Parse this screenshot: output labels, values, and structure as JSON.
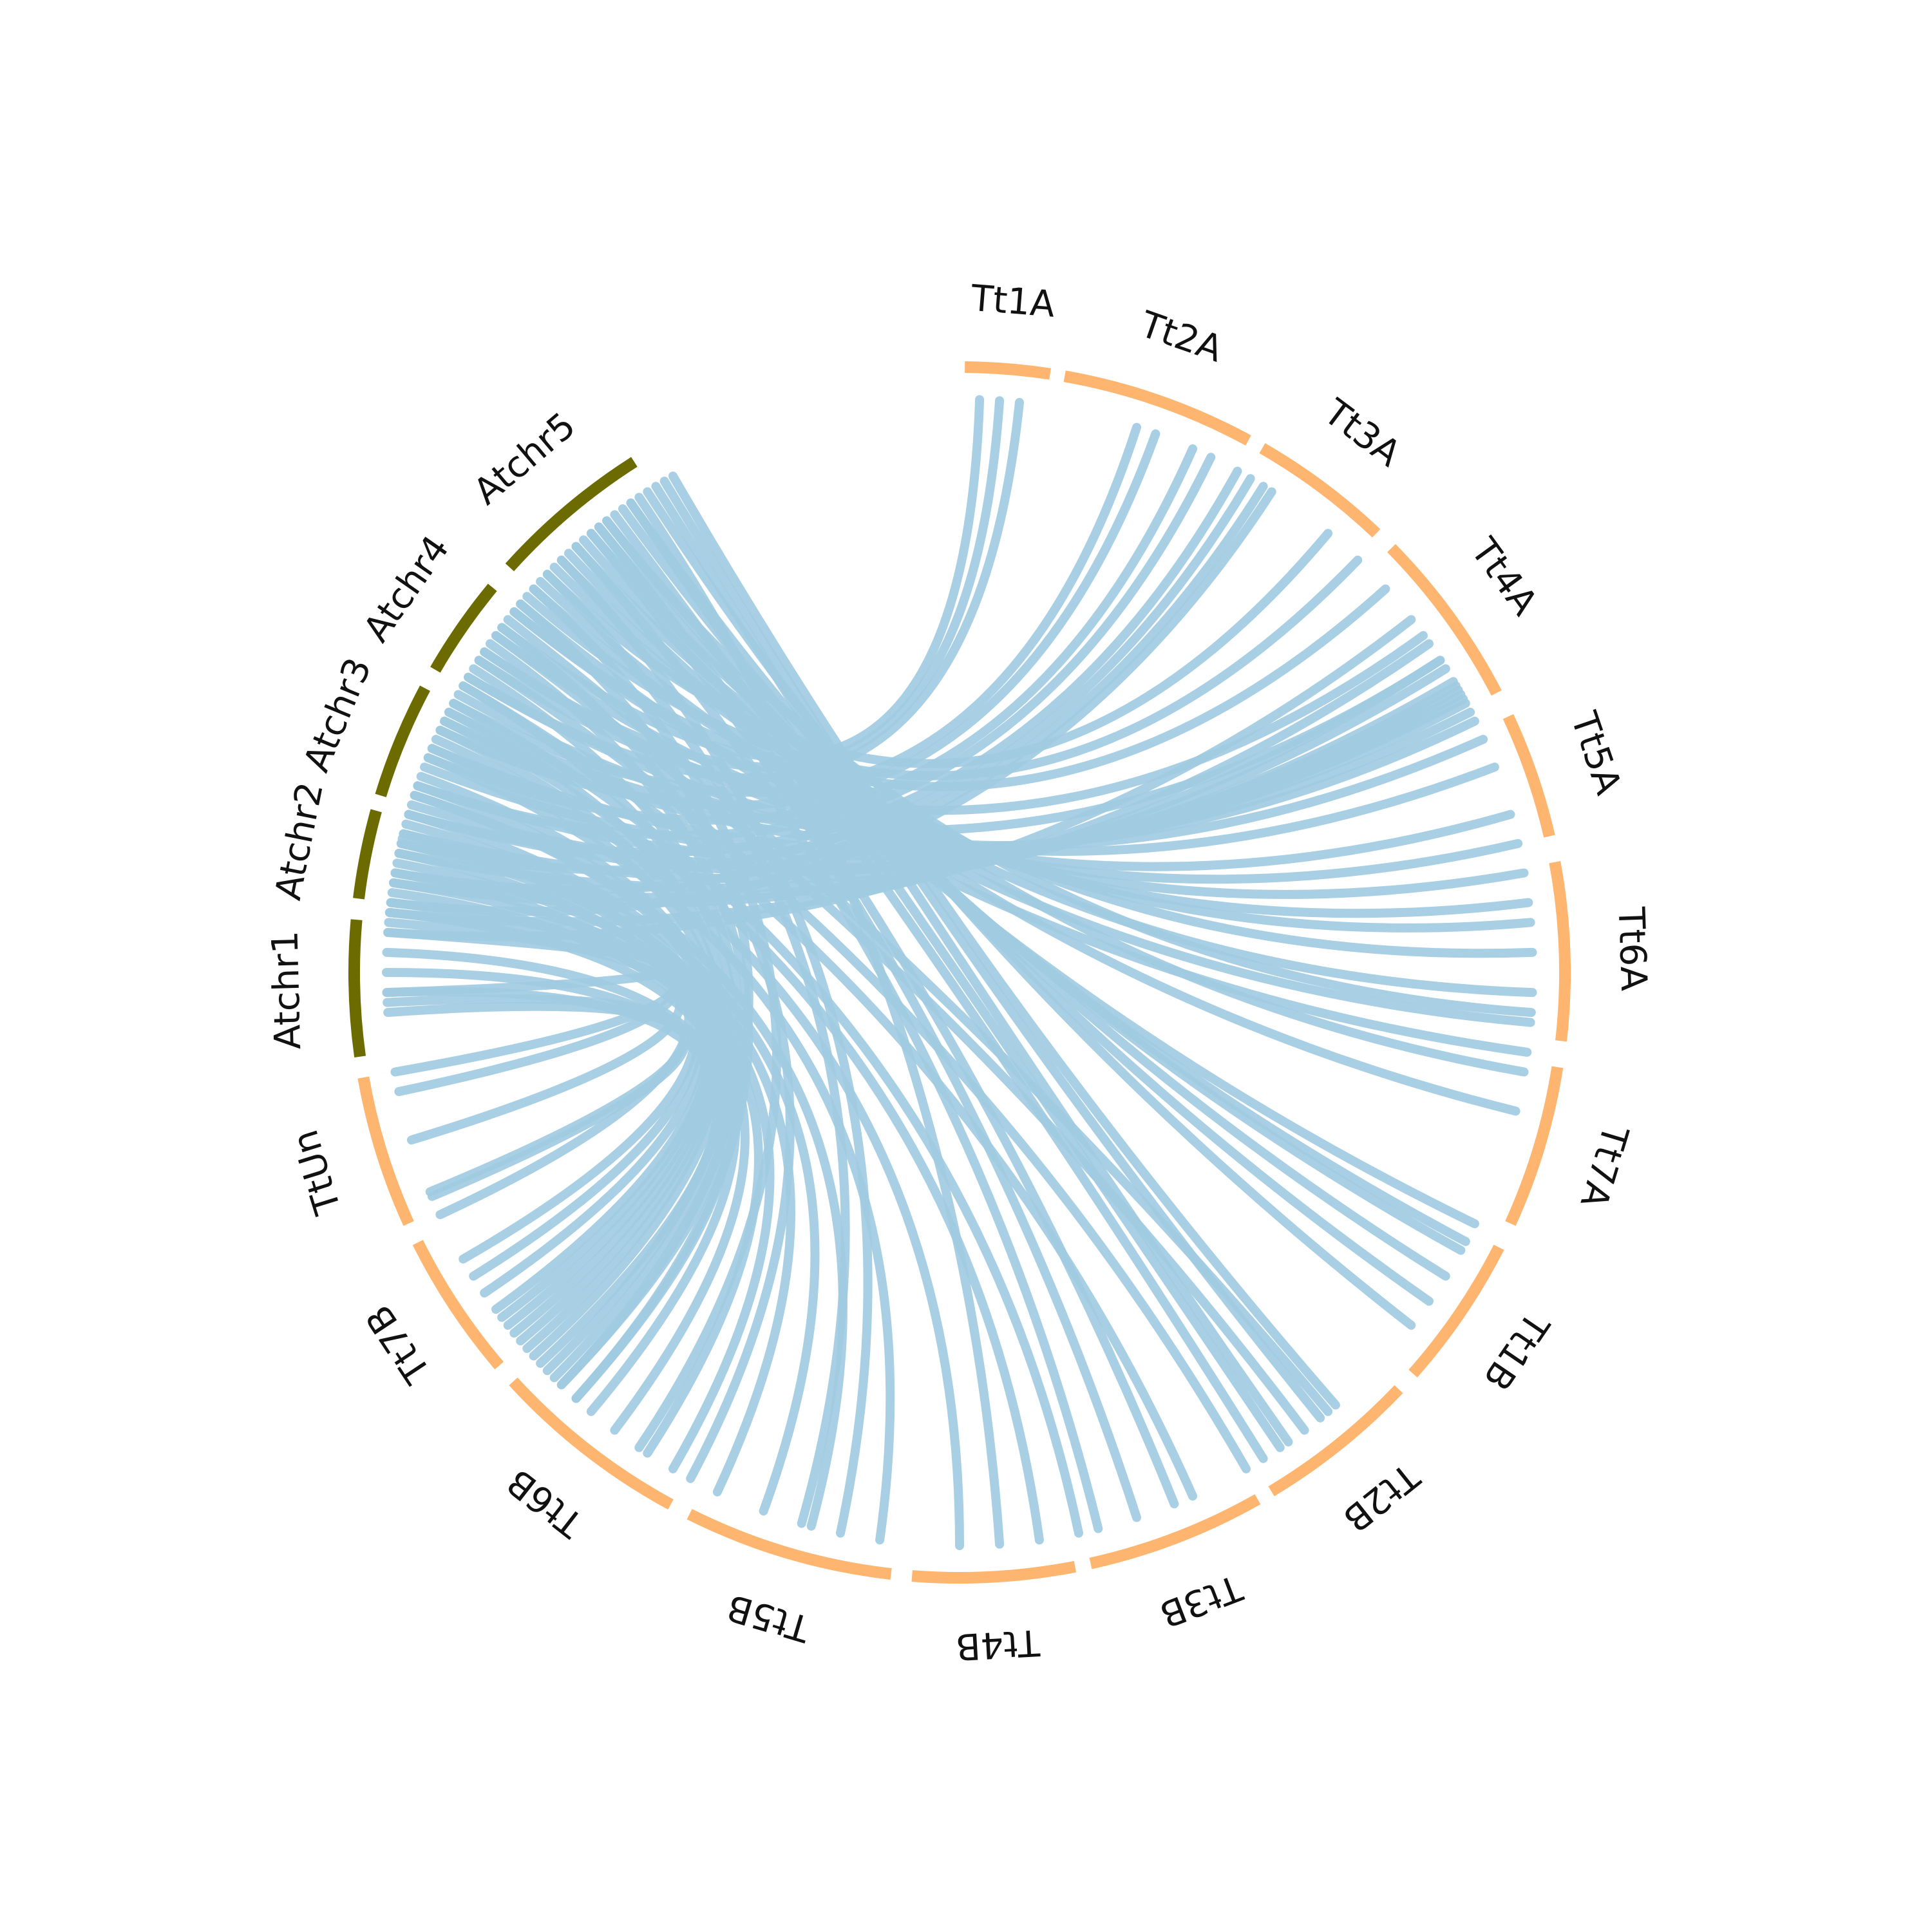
{
  "colors": {
    "arabidopsis": "#6b6b00",
    "triticum": "#fdb56f",
    "link": "#a1cbe1",
    "label": "#111111"
  },
  "chromosomes": [
    {
      "name": "Tt1A",
      "species": "triticum"
    },
    {
      "name": "Tt2A",
      "species": "triticum"
    },
    {
      "name": "Tt3A",
      "species": "triticum"
    },
    {
      "name": "Tt4A",
      "species": "triticum"
    },
    {
      "name": "Tt5A",
      "species": "triticum"
    },
    {
      "name": "Tt6A",
      "species": "triticum"
    },
    {
      "name": "Tt7A",
      "species": "triticum"
    },
    {
      "name": "Tt1B",
      "species": "triticum"
    },
    {
      "name": "Tt2B",
      "species": "triticum"
    },
    {
      "name": "Tt3B",
      "species": "triticum"
    },
    {
      "name": "Tt4B",
      "species": "triticum"
    },
    {
      "name": "Tt5B",
      "species": "triticum"
    },
    {
      "name": "Tt6B",
      "species": "triticum"
    },
    {
      "name": "Tt7B",
      "species": "triticum"
    },
    {
      "name": "TtUn",
      "species": "triticum"
    },
    {
      "name": "Atchr1",
      "species": "arabidopsis"
    },
    {
      "name": "Atchr2",
      "species": "arabidopsis"
    },
    {
      "name": "Atchr3",
      "species": "arabidopsis"
    },
    {
      "name": "Atchr4",
      "species": "arabidopsis"
    },
    {
      "name": "Atchr5",
      "species": "arabidopsis"
    }
  ]
}
